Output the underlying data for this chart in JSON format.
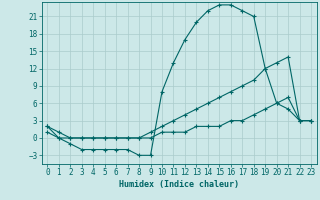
{
  "xlabel": "Humidex (Indice chaleur)",
  "xlim": [
    -0.5,
    23.5
  ],
  "ylim": [
    -4.5,
    23.5
  ],
  "yticks": [
    -3,
    0,
    3,
    6,
    9,
    12,
    15,
    18,
    21
  ],
  "xticks": [
    0,
    1,
    2,
    3,
    4,
    5,
    6,
    7,
    8,
    9,
    10,
    11,
    12,
    13,
    14,
    15,
    16,
    17,
    18,
    19,
    20,
    21,
    22,
    23
  ],
  "bg_color": "#cce8e8",
  "grid_color": "#aacccc",
  "line_color": "#006666",
  "line1_x": [
    0,
    1,
    2,
    3,
    4,
    5,
    6,
    7,
    8,
    9,
    10,
    11,
    12,
    13,
    14,
    15,
    16,
    17,
    18,
    19,
    20,
    21,
    22,
    23
  ],
  "line1_y": [
    2,
    0,
    -1,
    -2,
    -2,
    -2,
    -2,
    -2,
    -3,
    -3,
    8,
    13,
    17,
    20,
    22,
    23,
    23,
    22,
    21,
    12,
    6,
    5,
    3,
    3
  ],
  "line2_x": [
    0,
    1,
    2,
    3,
    4,
    5,
    6,
    7,
    8,
    9,
    10,
    11,
    12,
    13,
    14,
    15,
    16,
    17,
    18,
    19,
    20,
    21,
    22,
    23
  ],
  "line2_y": [
    2,
    1,
    0,
    0,
    0,
    0,
    0,
    0,
    0,
    1,
    2,
    3,
    4,
    5,
    6,
    7,
    8,
    9,
    10,
    12,
    13,
    14,
    3,
    3
  ],
  "line3_x": [
    0,
    1,
    2,
    3,
    4,
    5,
    6,
    7,
    8,
    9,
    10,
    11,
    12,
    13,
    14,
    15,
    16,
    17,
    18,
    19,
    20,
    21,
    22,
    23
  ],
  "line3_y": [
    1,
    0,
    0,
    0,
    0,
    0,
    0,
    0,
    0,
    0,
    1,
    1,
    1,
    2,
    2,
    2,
    3,
    3,
    4,
    5,
    6,
    7,
    3,
    3
  ]
}
